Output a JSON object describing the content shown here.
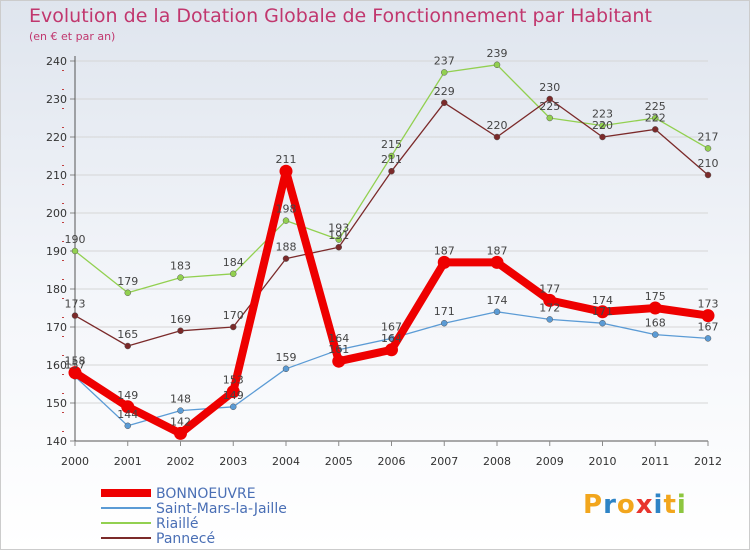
{
  "title": "Evolution de la Dotation Globale de Fonctionnement par Habitant",
  "subtitle": "(en € et par an)",
  "logo": {
    "text": "Proxiti",
    "colors": [
      "#f2a61d",
      "#2e84c6",
      "#f2a61d",
      "#e8342d",
      "#2e84c6",
      "#f2a61d",
      "#8dc63f"
    ]
  },
  "chart_data": {
    "type": "line",
    "title": "Evolution de la Dotation Globale de Fonctionnement par Habitant",
    "subtitle": "(en € et par an)",
    "xlabel": "",
    "ylabel": "",
    "x": [
      "2000",
      "2001",
      "2002",
      "2003",
      "2004",
      "2005",
      "2006",
      "2007",
      "2008",
      "2009",
      "2010",
      "2011",
      "2012"
    ],
    "ylim": [
      140,
      240
    ],
    "yticks": [
      140,
      150,
      160,
      170,
      180,
      190,
      200,
      210,
      220,
      230,
      240
    ],
    "grid": true,
    "legend_position": "bottom-left",
    "series": [
      {
        "name": "BONNOEUVRE",
        "color": "#ee0000",
        "values": [
          158,
          149,
          142,
          153,
          211,
          161,
          164,
          187,
          187,
          177,
          174,
          175,
          173
        ],
        "labels": [
          "158",
          "149",
          "142",
          "153",
          "211",
          "161",
          "164",
          "187",
          "187",
          "177",
          "174",
          "175",
          "173"
        ]
      },
      {
        "name": "Saint-Mars-la-Jaille",
        "color": "#5b9bd5",
        "values": [
          157,
          144,
          148,
          149,
          159,
          164,
          167,
          171,
          174,
          172,
          171,
          168,
          167
        ],
        "labels": [
          "157",
          "144",
          "148",
          "149",
          "159",
          "164",
          "167",
          "171",
          "174",
          "172",
          "171",
          "168",
          "167"
        ]
      },
      {
        "name": "Riaillé",
        "color": "#92d050",
        "values": [
          190,
          179,
          183,
          184,
          198,
          193,
          215,
          237,
          239,
          225,
          223,
          225,
          217
        ],
        "labels": [
          "190",
          "179",
          "183",
          "184",
          "198",
          "193",
          "215",
          "237",
          "239",
          "225",
          "223",
          "225",
          "217"
        ]
      },
      {
        "name": "Pannecé",
        "color": "#7b2a2a",
        "values": [
          173,
          165,
          169,
          170,
          188,
          191,
          211,
          229,
          220,
          230,
          220,
          222,
          210
        ],
        "labels": [
          "173",
          "165",
          "169",
          "170",
          "188",
          "191",
          "211",
          "229",
          "220",
          "230",
          "220",
          "222",
          "210"
        ]
      }
    ]
  }
}
